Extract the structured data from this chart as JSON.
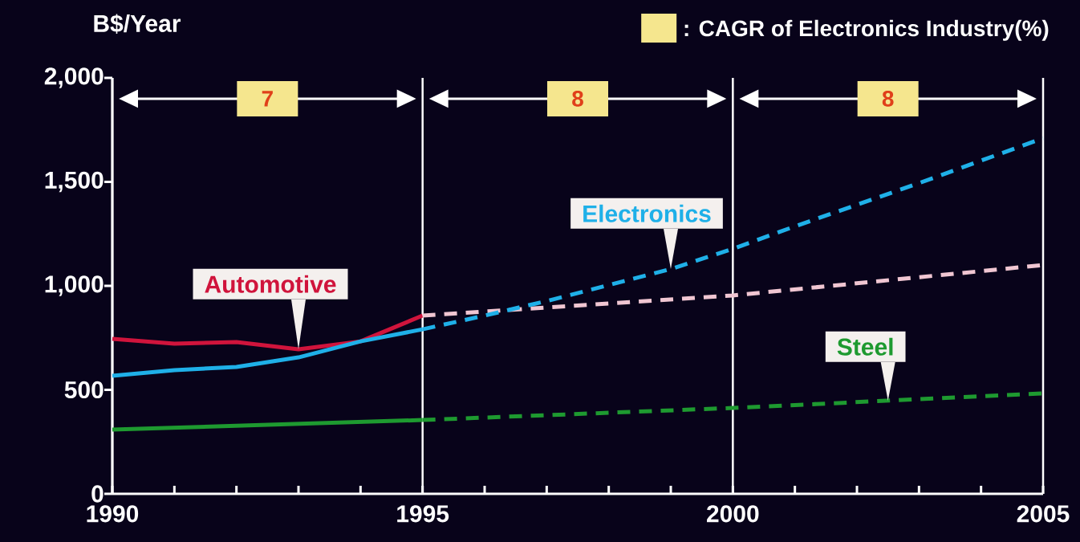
{
  "chart_data": {
    "type": "line",
    "ylabel": "B$/Year",
    "xlim": [
      1990,
      2005
    ],
    "xticks": [
      1990,
      1995,
      2000,
      2005
    ],
    "ylim": [
      0,
      2000
    ],
    "yticks": [
      0,
      500,
      {
        "value": 1000,
        "label": "1,000"
      },
      {
        "value": 1500,
        "label": "1,500"
      },
      {
        "value": 2000,
        "label": "2,000"
      }
    ],
    "series": [
      {
        "name": "Automotive",
        "color": "#d0143c",
        "line_style": "solid",
        "x": [
          1990,
          1991,
          1992,
          1993,
          1994,
          1995
        ],
        "values": [
          745,
          722,
          730,
          695,
          733,
          857
        ]
      },
      {
        "color": "#f0c6d2",
        "line_style": "dashed",
        "x": [
          1995,
          2000,
          2005
        ],
        "values": [
          857,
          954,
          1100
        ]
      },
      {
        "color": "#1fb0e8",
        "line_style": "solid",
        "x": [
          1990,
          1991,
          1992,
          1993,
          1994,
          1995
        ],
        "values": [
          568,
          595,
          610,
          656,
          733,
          791
        ]
      },
      {
        "name": "Electronics",
        "color": "#1fb0e8",
        "line_style": "dashed",
        "x": [
          1995,
          1996,
          1997,
          1998,
          1999,
          2000,
          2001,
          2002,
          2003,
          2004,
          2005
        ],
        "values": [
          791,
          857,
          927,
          1004,
          1081,
          1178,
          1286,
          1390,
          1494,
          1602,
          1710
        ]
      },
      {
        "color": "#1e9a30",
        "line_style": "solid",
        "x": [
          1990,
          1995
        ],
        "values": [
          309,
          355
        ]
      },
      {
        "name": "Steel",
        "color": "#1e9a30",
        "line_style": "dashed",
        "x": [
          1995,
          2000,
          2005
        ],
        "values": [
          355,
          413,
          483
        ]
      }
    ],
    "annotations": [
      "7",
      "8",
      "8",
      ": CAGR of Electronics Industry(%)"
    ],
    "grid": "x",
    "marker": "none"
  }
}
